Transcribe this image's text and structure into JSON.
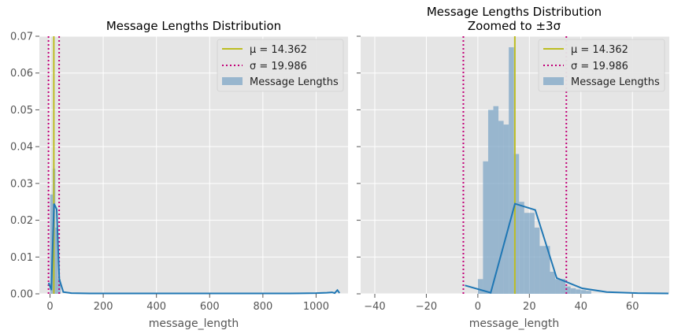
{
  "chart_data": [
    {
      "type": "histogram",
      "title": "Message Lengths Distribution",
      "subtitle": "",
      "xlabel": "message_length",
      "ylabel": "",
      "xlim": [
        -40,
        1120
      ],
      "ylim": [
        0,
        0.07
      ],
      "xticks": [
        0,
        200,
        400,
        600,
        800,
        1000
      ],
      "yticks": [
        0.0,
        0.01,
        0.02,
        0.03,
        0.04,
        0.05,
        0.06,
        0.07
      ],
      "xtick_labels": [
        "0",
        "200",
        "400",
        "600",
        "800",
        "1000"
      ],
      "ytick_labels": [
        "0.00",
        "0.01",
        "0.02",
        "0.03",
        "0.04",
        "0.05",
        "0.06",
        "0.07"
      ],
      "grid": true,
      "legend_position": "top-right",
      "mean": 14.362,
      "std": 19.986,
      "mean_color": "#bcbd22",
      "std_color": "#c20078",
      "hist_color": "#7ea6c6",
      "kde_color": "#1f77b4",
      "hist_bins": [
        {
          "x0": 0,
          "x1": 10,
          "height": 0.027
        },
        {
          "x0": 10,
          "x1": 20,
          "height": 0.034
        },
        {
          "x0": 20,
          "x1": 30,
          "height": 0.018
        },
        {
          "x0": 30,
          "x1": 40,
          "height": 0.004
        }
      ],
      "kde": {
        "x": [
          -5,
          5,
          15,
          25,
          35,
          50,
          80,
          150,
          300,
          500,
          700,
          900,
          1000,
          1040,
          1060,
          1070,
          1080,
          1088
        ],
        "y": [
          0.003,
          0.001,
          0.0245,
          0.023,
          0.004,
          0.0005,
          0.0002,
          0.0001,
          0.0001,
          0.0001,
          0.0001,
          0.0001,
          0.0002,
          0.0003,
          0.0004,
          0.0002,
          0.001,
          0.0002
        ]
      },
      "legend": [
        {
          "label": "μ = 14.362",
          "kind": "mean"
        },
        {
          "label": "σ = 19.986",
          "kind": "std"
        },
        {
          "label": "Message Lengths",
          "kind": "hist"
        }
      ]
    },
    {
      "type": "histogram",
      "title": "Message Lengths Distribution",
      "subtitle": "Zoomed to ±3σ",
      "xlabel": "message_length",
      "ylabel": "",
      "xlim": [
        -45.5,
        74.3
      ],
      "ylim": [
        0,
        0.07
      ],
      "xticks": [
        -40,
        -20,
        0,
        20,
        40,
        60
      ],
      "yticks": [
        0.0,
        0.01,
        0.02,
        0.03,
        0.04,
        0.05,
        0.06,
        0.07
      ],
      "xtick_labels": [
        "−40",
        "−20",
        "0",
        "20",
        "40",
        "60"
      ],
      "ytick_labels": [
        "",
        "",
        "",
        "",
        "",
        "",
        "",
        ""
      ],
      "grid": true,
      "legend_position": "top-right",
      "mean": 14.362,
      "std": 19.986,
      "mean_color": "#bcbd22",
      "std_color": "#c20078",
      "hist_color": "#7ea6c6",
      "kde_color": "#1f77b4",
      "hist_bins": [
        {
          "x0": 0,
          "x1": 2,
          "height": 0.004
        },
        {
          "x0": 2,
          "x1": 4,
          "height": 0.036
        },
        {
          "x0": 4,
          "x1": 6,
          "height": 0.05
        },
        {
          "x0": 6,
          "x1": 8,
          "height": 0.051
        },
        {
          "x0": 8,
          "x1": 10,
          "height": 0.047
        },
        {
          "x0": 10,
          "x1": 12,
          "height": 0.046
        },
        {
          "x0": 12,
          "x1": 14,
          "height": 0.067
        },
        {
          "x0": 14,
          "x1": 16,
          "height": 0.038
        },
        {
          "x0": 16,
          "x1": 18,
          "height": 0.025
        },
        {
          "x0": 18,
          "x1": 20,
          "height": 0.022
        },
        {
          "x0": 20,
          "x1": 22,
          "height": 0.022
        },
        {
          "x0": 22,
          "x1": 24,
          "height": 0.018
        },
        {
          "x0": 24,
          "x1": 26,
          "height": 0.013
        },
        {
          "x0": 26,
          "x1": 28,
          "height": 0.013
        },
        {
          "x0": 28,
          "x1": 30,
          "height": 0.006
        },
        {
          "x0": 30,
          "x1": 32,
          "height": 0.004
        },
        {
          "x0": 32,
          "x1": 34,
          "height": 0.004
        },
        {
          "x0": 34,
          "x1": 36,
          "height": 0.002
        },
        {
          "x0": 36,
          "x1": 38,
          "height": 0.0015
        },
        {
          "x0": 38,
          "x1": 40,
          "height": 0.0012
        },
        {
          "x0": 40,
          "x1": 42,
          "height": 0.001
        },
        {
          "x0": 42,
          "x1": 44,
          "height": 0.0008
        }
      ],
      "kde": {
        "x": [
          -5,
          5,
          14.4,
          22.3,
          30.6,
          40.5,
          50,
          62,
          74
        ],
        "y": [
          0.0023,
          0.0003,
          0.0245,
          0.0228,
          0.0043,
          0.0015,
          0.0005,
          0.0002,
          0.0001
        ]
      },
      "legend": [
        {
          "label": "μ = 14.362",
          "kind": "mean"
        },
        {
          "label": "σ = 19.986",
          "kind": "std"
        },
        {
          "label": "Message Lengths",
          "kind": "hist"
        }
      ]
    }
  ]
}
